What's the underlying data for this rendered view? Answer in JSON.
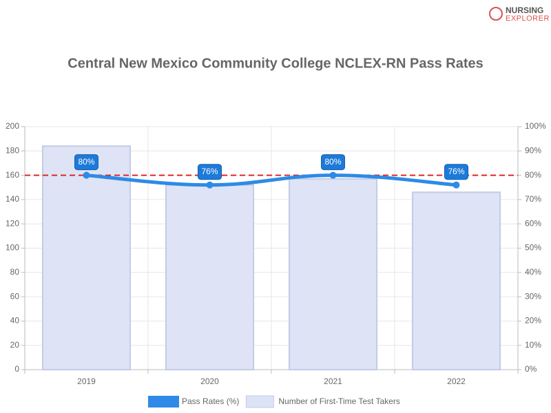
{
  "logo": {
    "line1": "NURSING",
    "line2": "EXPLORER"
  },
  "chart_data": {
    "type": "bar-line",
    "title": "Central New Mexico Community College NCLEX-RN Pass Rates",
    "categories": [
      "2019",
      "2020",
      "2021",
      "2022"
    ],
    "series": [
      {
        "name": "Pass Rates (%)",
        "type": "line",
        "axis": "y2",
        "color": "#2e8ae6",
        "values": [
          80,
          76,
          80,
          76
        ],
        "value_labels": [
          "80%",
          "76%",
          "80%",
          "76%"
        ]
      },
      {
        "name": "Number of First-Time Test Takers",
        "type": "bar",
        "axis": "y",
        "color": "#dce3f6",
        "values": [
          184,
          152,
          157,
          146
        ]
      }
    ],
    "ylim": [
      0,
      200
    ],
    "yticks": [
      0,
      20,
      40,
      60,
      80,
      100,
      120,
      140,
      160,
      180,
      200
    ],
    "y2lim": [
      0,
      100
    ],
    "y2ticks": [
      {
        "value": 0,
        "label": "0%"
      },
      {
        "value": 10,
        "label": "10%"
      },
      {
        "value": 20,
        "label": "20%"
      },
      {
        "value": 30,
        "label": "30%"
      },
      {
        "value": 40,
        "label": "40%"
      },
      {
        "value": 50,
        "label": "50%"
      },
      {
        "value": 60,
        "label": "60%"
      },
      {
        "value": 70,
        "label": "70%"
      },
      {
        "value": 80,
        "label": "80%"
      },
      {
        "value": 90,
        "label": "90%"
      },
      {
        "value": 100,
        "label": "100%"
      }
    ],
    "reference_line": {
      "value": 80,
      "axis": "y2",
      "color": "#e02424"
    },
    "grid": true
  }
}
